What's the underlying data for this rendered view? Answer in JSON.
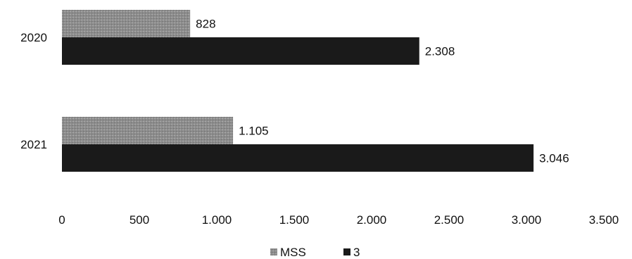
{
  "chart_data": {
    "type": "bar",
    "orientation": "horizontal",
    "categories": [
      "2020",
      "2021"
    ],
    "series": [
      {
        "name": "MSS",
        "values": [
          828,
          1105
        ],
        "labels": [
          "828",
          "1.105"
        ],
        "color": "#8f8f8f"
      },
      {
        "name": "3",
        "values": [
          2308,
          3046
        ],
        "labels": [
          "2.308",
          "3.046"
        ],
        "color": "#1a1a1a"
      }
    ],
    "xlim": [
      0,
      3500
    ],
    "x_ticks": [
      0,
      500,
      1000,
      1500,
      2000,
      2500,
      3000,
      3500
    ],
    "x_tick_labels": [
      "0",
      "500",
      "1.000",
      "1.500",
      "2.000",
      "2.500",
      "3.000",
      "3.500"
    ],
    "title": "",
    "xlabel": "",
    "ylabel": "",
    "grid": false,
    "legend_position": "bottom"
  }
}
